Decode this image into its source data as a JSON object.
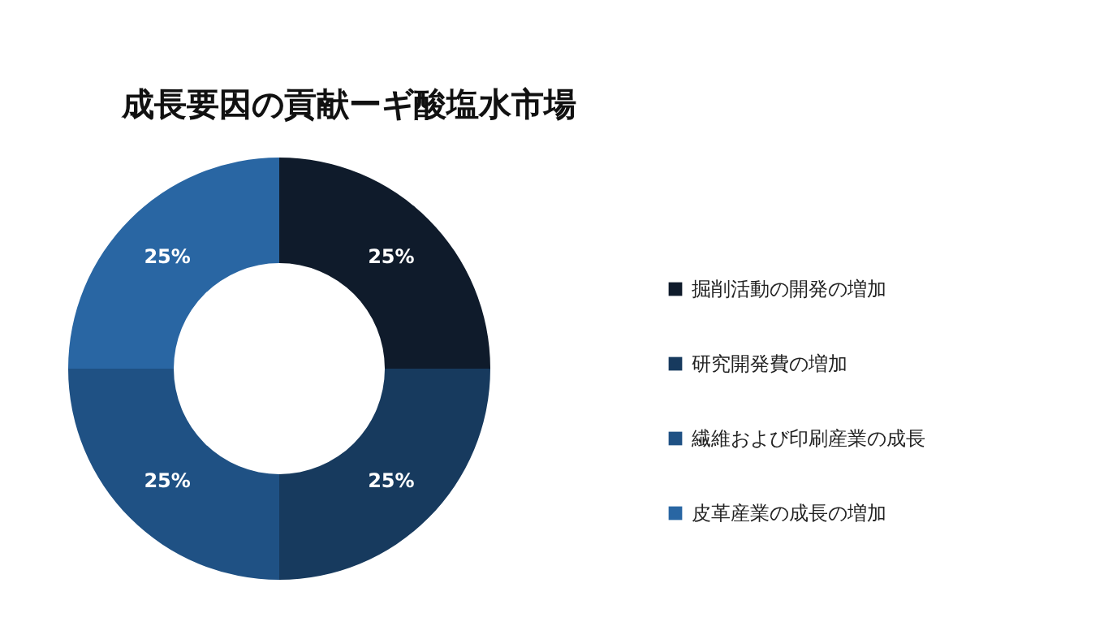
{
  "chart_data": {
    "type": "donut",
    "title": "成長要因の貢献ーギ酸塩水市場",
    "categories": [
      "掘削活動の開発の増加",
      "研究開発費の増加",
      "繊維および印刷産業の成長",
      "皮革産業の成長の増加"
    ],
    "values": [
      25,
      25,
      25,
      25
    ],
    "colors": [
      "#0f1b2b",
      "#173a5e",
      "#1f5184",
      "#2966a3"
    ],
    "value_labels": [
      "25%",
      "25%",
      "25%",
      "25%"
    ],
    "legend": "right"
  }
}
